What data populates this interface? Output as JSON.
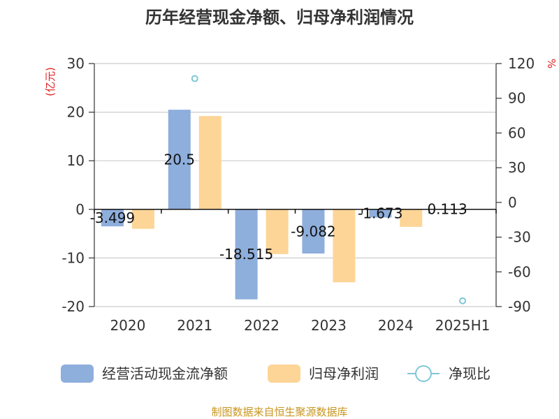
{
  "chart_data": {
    "type": "bar",
    "title": "历年经营现金净额、归母净利润情况",
    "categories": [
      "2020",
      "2021",
      "2022",
      "2023",
      "2024",
      "2025H1"
    ],
    "left_axis": {
      "unit": "(亿元)",
      "ylim": [
        -20,
        30
      ],
      "ticks": [
        30,
        20,
        10,
        0,
        -10,
        -20
      ]
    },
    "right_axis": {
      "unit": "%",
      "ylim": [
        -90,
        120
      ],
      "ticks": [
        120,
        90,
        60,
        30,
        0,
        -30,
        -60,
        -90
      ]
    },
    "series": [
      {
        "name": "经营活动现金流净额",
        "kind": "bar",
        "axis": "left",
        "color": "#8eaedc",
        "values": [
          -3.499,
          20.5,
          -18.515,
          -9.082,
          -1.673,
          0.113
        ],
        "labels": [
          "-3.499",
          "20.5",
          "-18.515",
          "-9.082",
          "-1.673",
          "0.113"
        ]
      },
      {
        "name": "归母净利润",
        "kind": "bar",
        "axis": "left",
        "color": "#fdd597",
        "values": [
          -4.0,
          19.2,
          -9.2,
          -15.0,
          -3.6,
          -0.1
        ]
      },
      {
        "name": "净现比",
        "kind": "marker",
        "axis": "right",
        "color": "#7fc8d6",
        "points": [
          {
            "category": "2021",
            "value": 107
          },
          {
            "category": "2025H1",
            "value": -85
          }
        ]
      }
    ],
    "grid": true,
    "legend_position": "bottom"
  },
  "source_note": "制图数据来自恒生聚源数据库"
}
